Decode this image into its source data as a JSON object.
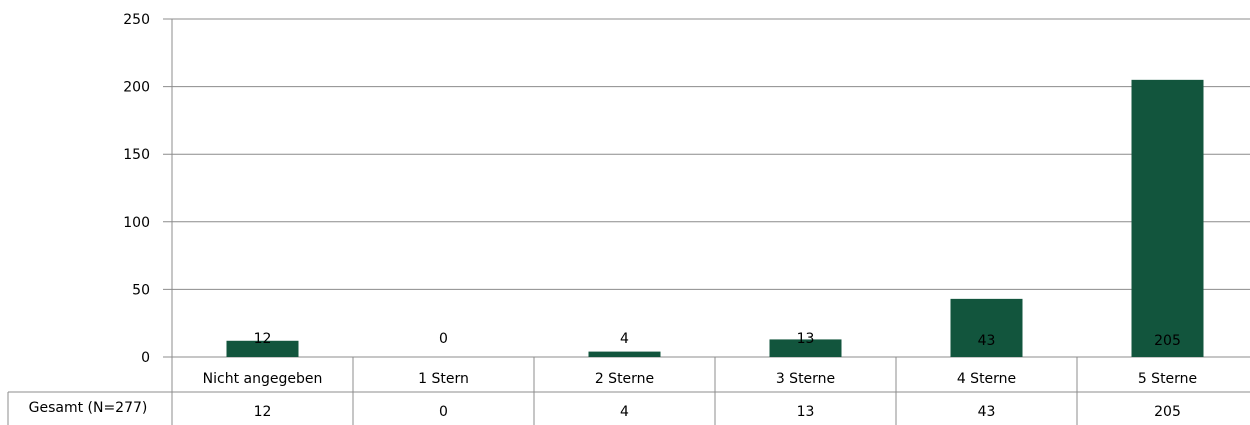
{
  "chart_data": {
    "type": "bar",
    "categories": [
      "Nicht angegeben",
      "1 Stern",
      "2 Sterne",
      "3 Sterne",
      "4 Sterne",
      "5 Sterne"
    ],
    "series": [
      {
        "name": "Gesamt (N=277)",
        "values": [
          12,
          0,
          4,
          13,
          43,
          205
        ]
      }
    ],
    "data_labels": [
      "12",
      "0",
      "4",
      "13",
      "43",
      "205"
    ],
    "table_values": [
      "12",
      "0",
      "4",
      "13",
      "43",
      "205"
    ],
    "yticks": [
      "0",
      "50",
      "100",
      "150",
      "200",
      "250"
    ],
    "ylim": [
      0,
      250
    ],
    "grid": true,
    "legend": "data-table",
    "bar_color": "#12553D"
  }
}
